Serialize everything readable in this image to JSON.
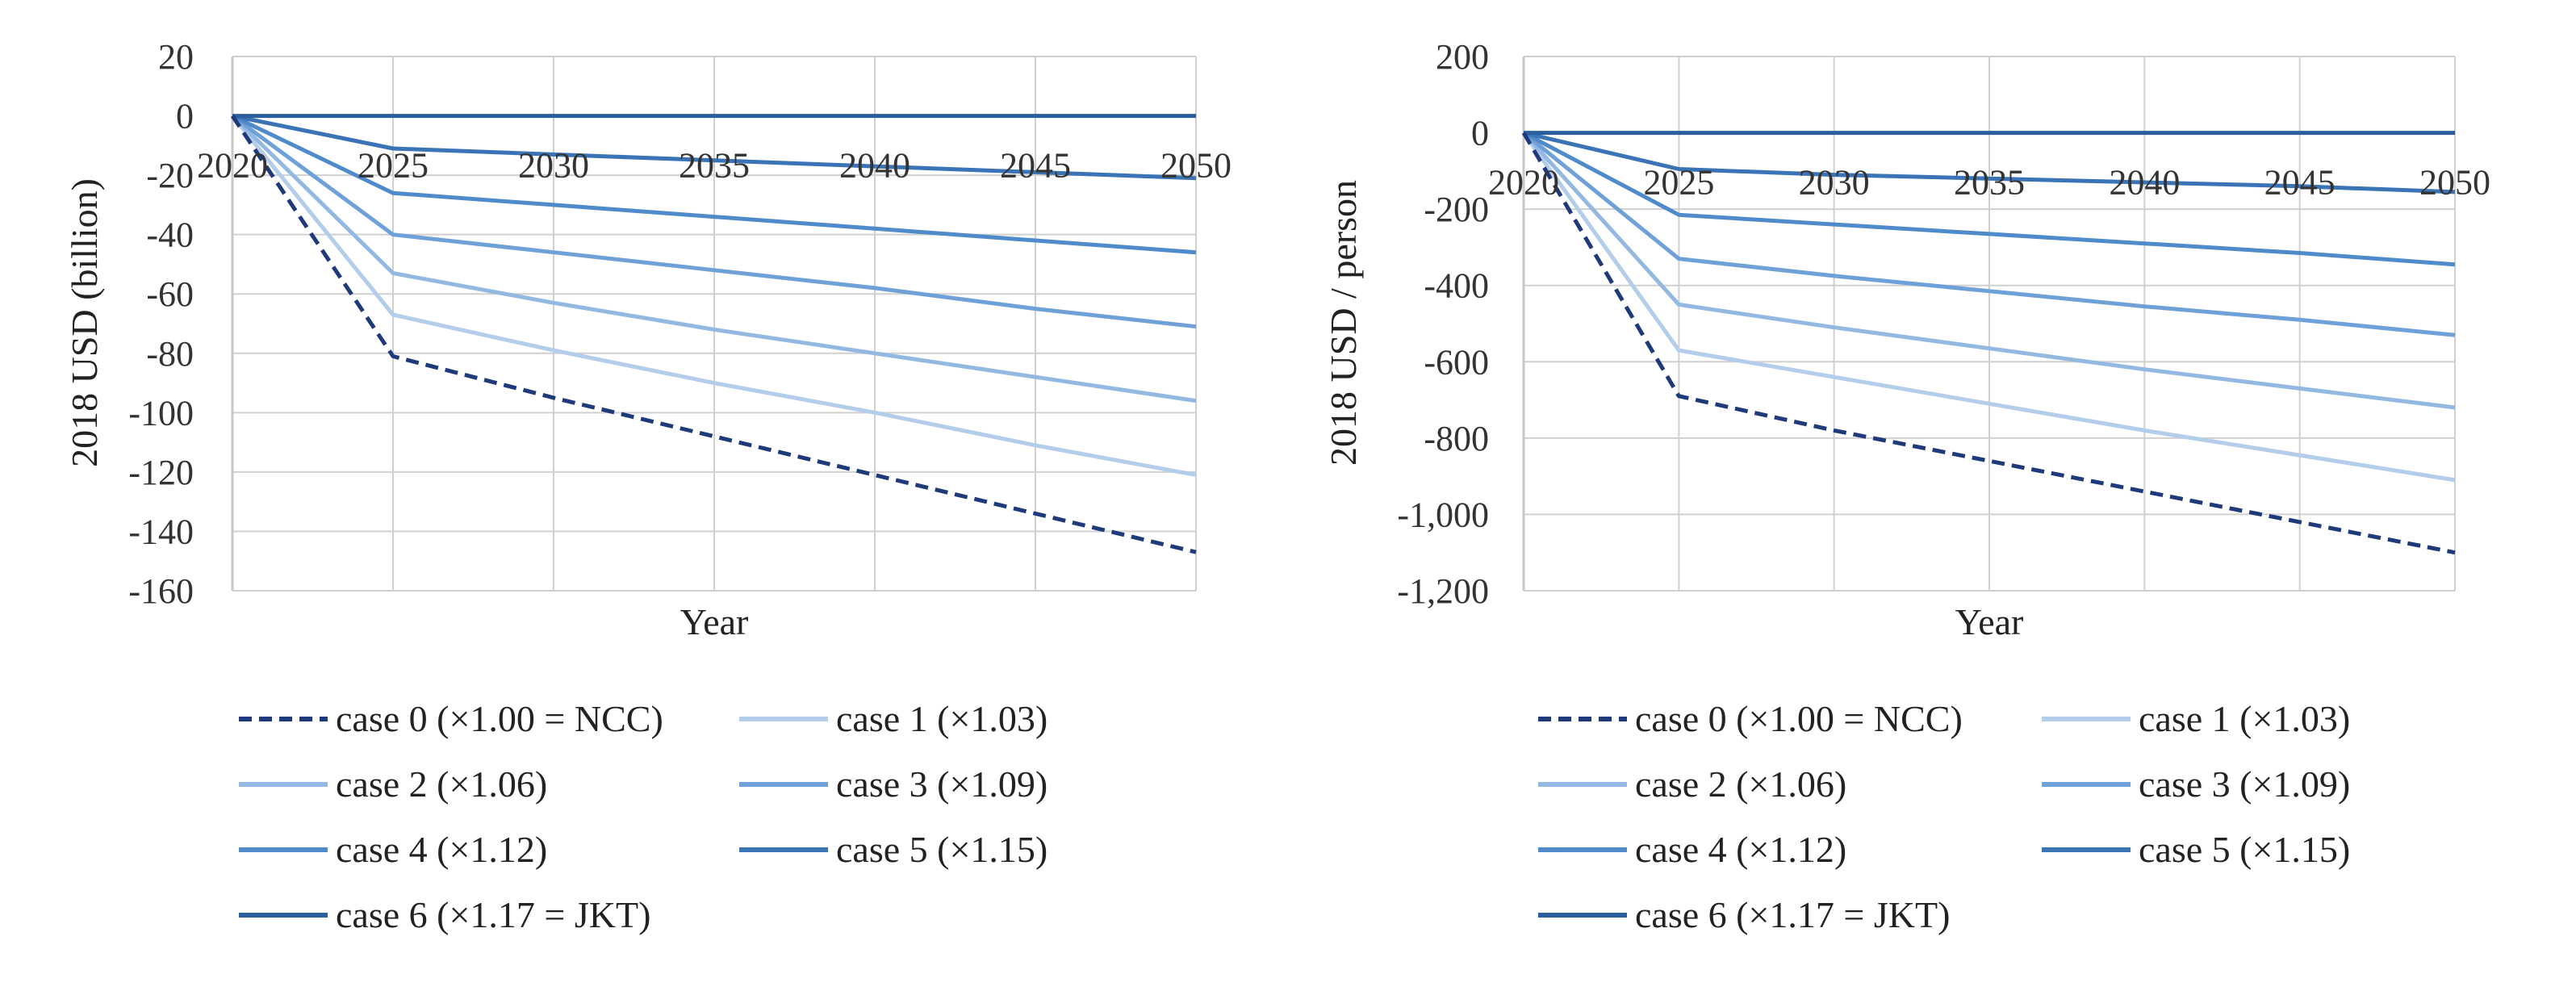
{
  "chart_data": [
    {
      "type": "line",
      "title": "",
      "xlabel": "Year",
      "ylabel": "2018 USD (billion)",
      "x": [
        2020,
        2025,
        2030,
        2035,
        2040,
        2045,
        2050
      ],
      "xticks": [
        "2020",
        "2025",
        "2030",
        "2035",
        "2040",
        "2045",
        "2050"
      ],
      "ylim": [
        -160,
        20
      ],
      "yticks": [
        "20",
        "0",
        "-20",
        "-40",
        "-60",
        "-80",
        "-100",
        "-120",
        "-140",
        "-160"
      ],
      "grid": true,
      "legend_position": "bottom",
      "series": [
        {
          "name": "case 0  (×1.00 = NCC)",
          "style": "dashed",
          "color": "#1f3a7a",
          "values": [
            0,
            -81,
            -95,
            -108,
            -121,
            -134,
            -147
          ]
        },
        {
          "name": "case 1  (×1.03)",
          "style": "solid",
          "color": "#b4cdea",
          "values": [
            0,
            -67,
            -79,
            -90,
            -100,
            -111,
            -121
          ]
        },
        {
          "name": "case 2  (×1.06)",
          "style": "solid",
          "color": "#93b9e2",
          "values": [
            0,
            -53,
            -63,
            -72,
            -80,
            -88,
            -96
          ]
        },
        {
          "name": "case 3  (×1.09)",
          "style": "solid",
          "color": "#6fa1d8",
          "values": [
            0,
            -40,
            -46,
            -52,
            -58,
            -65,
            -71
          ]
        },
        {
          "name": "case 4  (×1.12)",
          "style": "solid",
          "color": "#4f8acb",
          "values": [
            0,
            -26,
            -30,
            -34,
            -38,
            -42,
            -46
          ]
        },
        {
          "name": "case 5  (×1.15)",
          "style": "solid",
          "color": "#3a73b6",
          "values": [
            0,
            -11,
            -13,
            -15,
            -17,
            -19,
            -21
          ]
        },
        {
          "name": "case 6  (×1.17 = JKT)",
          "style": "solid",
          "color": "#2a5e9e",
          "values": [
            0,
            0,
            0,
            0,
            0,
            0,
            0
          ]
        }
      ]
    },
    {
      "type": "line",
      "title": "",
      "xlabel": "Year",
      "ylabel": "2018 USD / person",
      "x": [
        2020,
        2025,
        2030,
        2035,
        2040,
        2045,
        2050
      ],
      "xticks": [
        "2020",
        "2025",
        "2030",
        "2035",
        "2040",
        "2045",
        "2050"
      ],
      "ylim": [
        -1200,
        200
      ],
      "yticks": [
        "200",
        "0",
        "-200",
        "-400",
        "-600",
        "-800",
        "-1,000",
        "-1,200"
      ],
      "grid": true,
      "legend_position": "bottom",
      "series": [
        {
          "name": "case 0  (×1.00 = NCC)",
          "style": "dashed",
          "color": "#1f3a7a",
          "values": [
            0,
            -690,
            -780,
            -860,
            -940,
            -1020,
            -1100
          ]
        },
        {
          "name": "case 1  (×1.03)",
          "style": "solid",
          "color": "#b4cdea",
          "values": [
            0,
            -570,
            -640,
            -710,
            -780,
            -845,
            -910
          ]
        },
        {
          "name": "case 2  (×1.06)",
          "style": "solid",
          "color": "#93b9e2",
          "values": [
            0,
            -450,
            -510,
            -565,
            -620,
            -670,
            -720
          ]
        },
        {
          "name": "case 3  (×1.09)",
          "style": "solid",
          "color": "#6fa1d8",
          "values": [
            0,
            -330,
            -375,
            -415,
            -455,
            -490,
            -530
          ]
        },
        {
          "name": "case 4  (×1.12)",
          "style": "solid",
          "color": "#4f8acb",
          "values": [
            0,
            -215,
            -240,
            -265,
            -290,
            -315,
            -345
          ]
        },
        {
          "name": "case 5  (×1.15)",
          "style": "solid",
          "color": "#3a73b6",
          "values": [
            0,
            -95,
            -110,
            -120,
            -130,
            -140,
            -155
          ]
        },
        {
          "name": "case 6  (×1.17 = JKT)",
          "style": "solid",
          "color": "#2a5e9e",
          "values": [
            0,
            0,
            0,
            0,
            0,
            0,
            0
          ]
        }
      ]
    }
  ]
}
